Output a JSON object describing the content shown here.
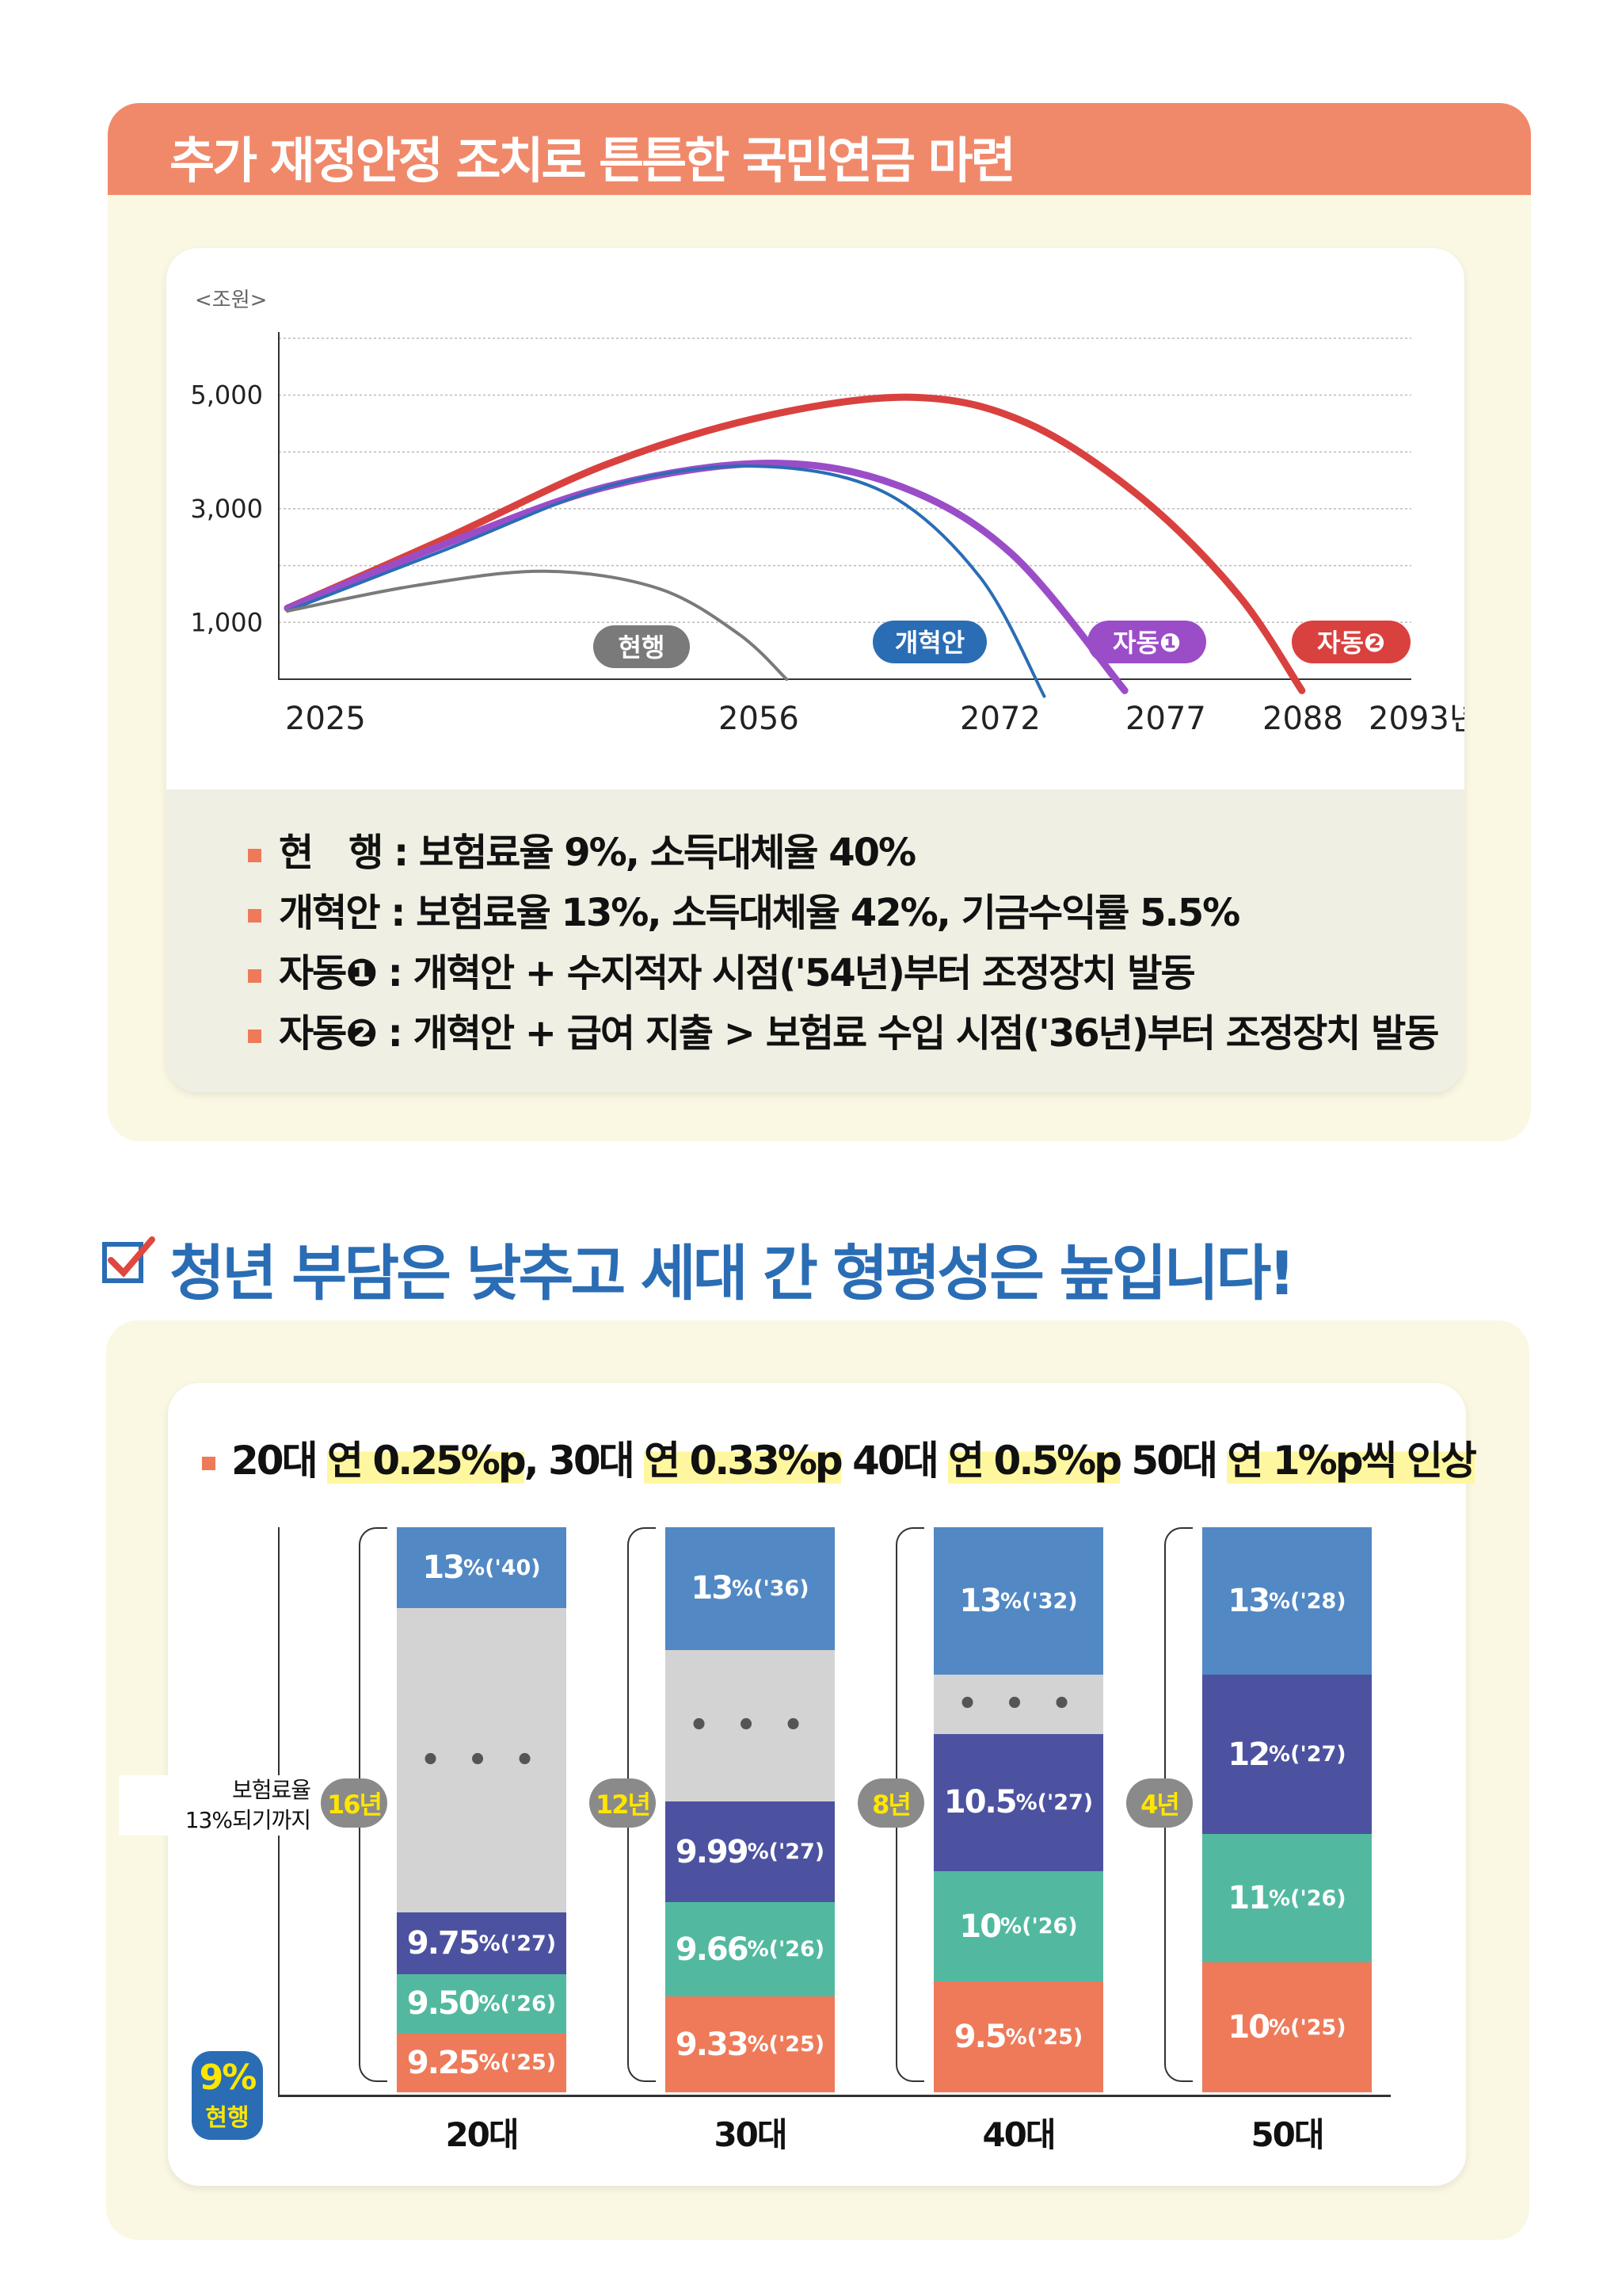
{
  "section1": {
    "title": "추가 재정안정 조치로 튼튼한 국민연금 마련",
    "chart_data": {
      "type": "line",
      "unit_label": "<조원>",
      "y_ticks": [
        "5,000",
        "3,000",
        "1,000"
      ],
      "y_tick_values": [
        5000,
        3000,
        1000
      ],
      "ylim": [
        0,
        6000
      ],
      "x_ticks": [
        "2025",
        "2056",
        "2072",
        "2077",
        "2088",
        "2093년"
      ],
      "x_tick_values": [
        2025,
        2056,
        2072,
        2077,
        2088,
        2093
      ],
      "grid": true,
      "series": [
        {
          "name": "현행",
          "color": "#7A7A7A",
          "points": [
            [
              2025,
              1200
            ],
            [
              2033,
              1650
            ],
            [
              2041,
              1900
            ],
            [
              2048,
              1600
            ],
            [
              2053,
              800
            ],
            [
              2056,
              0
            ]
          ]
        },
        {
          "name": "개혁안",
          "color": "#2A6DB5",
          "points": [
            [
              2025,
              1200
            ],
            [
              2035,
              2300
            ],
            [
              2045,
              3400
            ],
            [
              2054,
              3750
            ],
            [
              2062,
              3300
            ],
            [
              2068,
              1800
            ],
            [
              2072,
              -300
            ]
          ]
        },
        {
          "name": "자동❶",
          "color": "#9B4DC8",
          "points": [
            [
              2025,
              1250
            ],
            [
              2035,
              2400
            ],
            [
              2045,
              3400
            ],
            [
              2055,
              3800
            ],
            [
              2063,
              3400
            ],
            [
              2070,
              2200
            ],
            [
              2077,
              -200
            ]
          ]
        },
        {
          "name": "자동❷",
          "color": "#D9413F",
          "points": [
            [
              2025,
              1250
            ],
            [
              2035,
              2500
            ],
            [
              2045,
              3800
            ],
            [
              2055,
              4650
            ],
            [
              2064,
              4960
            ],
            [
              2071,
              4500
            ],
            [
              2078,
              3200
            ],
            [
              2084,
              1500
            ],
            [
              2088,
              -200
            ]
          ]
        }
      ]
    },
    "legend": [
      "현　행 : 보험료율 9%, 소득대체율 40%",
      "개혁안 : 보험료율 13%, 소득대체율 42%, 기금수익률 5.5%",
      "자동❶ : 개혁안 + 수지적자 시점('54년)부터 조정장치 발동",
      "자동❷ : 개혁안 + 급여 지출 > 보험료 수입 시점('36년)부터 조정장치 발동"
    ]
  },
  "section2": {
    "title": "청년 부담은 낮추고 세대 간 형평성은 높입니다!",
    "heading": [
      "20대 ",
      "연 0.25%p",
      ", 30대 ",
      "연 0.33%p",
      " 40대 ",
      "연 0.5%p",
      " 50대 ",
      "연 1%p씩 인상"
    ],
    "side_label": [
      "보험료율",
      "13%되기까지"
    ],
    "current_badge": {
      "value": "9%",
      "label": "현행"
    },
    "colors": {
      "blue": "#5288C4",
      "gray": "#D3D3D3",
      "indigo": "#4C52A0",
      "teal": "#52B9A0",
      "orange": "#EE7A5A"
    },
    "groups": [
      {
        "category": "20대",
        "years": "16년",
        "segments": [
          {
            "color": "blue",
            "num": "13",
            "rest": "%('40)"
          },
          {
            "color": "gray",
            "num": "",
            "rest": "• • •"
          },
          {
            "color": "indigo",
            "num": "9.75",
            "rest": "%('27)"
          },
          {
            "color": "teal",
            "num": "9.50",
            "rest": "%('26)"
          },
          {
            "color": "orange",
            "num": "9.25",
            "rest": "%('25)"
          }
        ]
      },
      {
        "category": "30대",
        "years": "12년",
        "segments": [
          {
            "color": "blue",
            "num": "13",
            "rest": "%('36)"
          },
          {
            "color": "gray",
            "num": "",
            "rest": "• • •"
          },
          {
            "color": "indigo",
            "num": "9.99",
            "rest": "%('27)"
          },
          {
            "color": "teal",
            "num": "9.66",
            "rest": "%('26)"
          },
          {
            "color": "orange",
            "num": "9.33",
            "rest": "%('25)"
          }
        ]
      },
      {
        "category": "40대",
        "years": "8년",
        "segments": [
          {
            "color": "blue",
            "num": "13",
            "rest": "%('32)"
          },
          {
            "color": "gray",
            "num": "",
            "rest": "• • •"
          },
          {
            "color": "indigo",
            "num": "10.5",
            "rest": "%('27)"
          },
          {
            "color": "teal",
            "num": "10",
            "rest": "%('26)"
          },
          {
            "color": "orange",
            "num": "9.5",
            "rest": "%('25)"
          }
        ]
      },
      {
        "category": "50대",
        "years": "4년",
        "segments": [
          {
            "color": "blue",
            "num": "13",
            "rest": "%('28)"
          },
          {
            "color": "indigo",
            "num": "12",
            "rest": "%('27)"
          },
          {
            "color": "teal",
            "num": "11",
            "rest": "%('26)"
          },
          {
            "color": "orange",
            "num": "10",
            "rest": "%('25)"
          }
        ]
      }
    ]
  }
}
